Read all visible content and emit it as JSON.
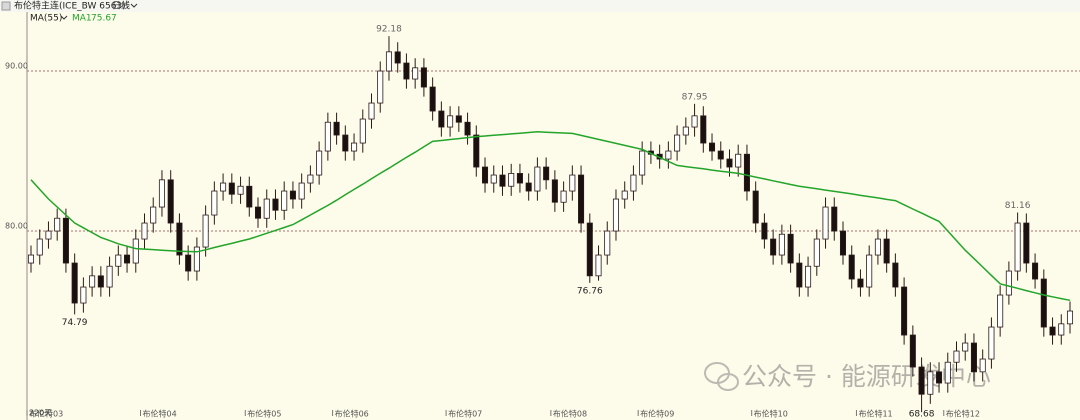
{
  "chart_data": {
    "type": "candlestick",
    "title": "布伦特主连(ICE_BW 6563)",
    "period": "日线",
    "indicator": "MA(55)",
    "days_label": "220天",
    "watermark": "公众号 · 能源研发中心",
    "up_color": "#ffffff",
    "down_color": "#1a1010",
    "outline_color": "#2a1a1a",
    "ylim": [
      68.19,
      94.44
    ],
    "yticks": [
      {
        "value": 90,
        "label": "90.00"
      },
      {
        "value": 80,
        "label": "80.00"
      }
    ],
    "grid": true,
    "categories": [
      "布伦特03",
      null,
      null,
      null,
      null,
      null,
      null,
      null,
      null,
      null,
      null,
      null,
      null,
      "布伦特04",
      null,
      null,
      null,
      null,
      null,
      null,
      null,
      null,
      null,
      null,
      null,
      "布伦特05",
      null,
      null,
      null,
      null,
      null,
      null,
      null,
      null,
      null,
      "布伦特06",
      null,
      null,
      null,
      null,
      null,
      null,
      null,
      null,
      null,
      null,
      null,
      null,
      "布伦特07",
      null,
      null,
      null,
      null,
      null,
      null,
      null,
      null,
      null,
      null,
      null,
      "布伦特08",
      null,
      null,
      null,
      null,
      null,
      null,
      null,
      null,
      null,
      "布伦特09",
      null,
      null,
      null,
      null,
      null,
      null,
      null,
      null,
      null,
      null,
      null,
      null,
      "布伦特10",
      null,
      null,
      null,
      null,
      null,
      null,
      null,
      null,
      null,
      null,
      null,
      "布伦特11",
      null,
      null,
      null,
      null,
      null,
      null,
      null,
      null,
      null,
      "布伦特12",
      null,
      null,
      null,
      null,
      null,
      null,
      null,
      null,
      null,
      null,
      null,
      null,
      null,
      null
    ],
    "open": [
      78,
      78.5,
      79.5,
      80,
      80.8,
      78,
      75.5,
      76.5,
      77.2,
      76.5,
      77.8,
      78.5,
      78,
      79.5,
      80.5,
      81.5,
      83.2,
      80.5,
      78.5,
      77.5,
      79,
      81,
      82.5,
      83,
      82.3,
      82.8,
      81.5,
      80.8,
      82,
      81.3,
      82.5,
      82,
      83,
      83.5,
      85,
      86.8,
      86,
      85,
      85.5,
      87,
      88,
      90,
      91.2,
      90.5,
      89.5,
      90.2,
      89,
      87.5,
      86.5,
      87.2,
      86.8,
      86,
      84,
      83,
      83.5,
      82.8,
      83.6,
      83,
      82.5,
      84,
      83.2,
      81.8,
      82.5,
      83.5,
      80.5,
      77.2,
      78.5,
      80,
      82,
      82.5,
      83.5,
      85,
      84.8,
      84.5,
      85,
      86,
      86.5,
      87.2,
      85.5,
      85,
      84.5,
      84,
      84.8,
      82.5,
      80.5,
      79.5,
      78.5,
      79.8,
      78,
      76.5,
      77.8,
      79.5,
      81.5,
      80,
      78.5,
      77,
      76.5,
      78.5,
      79.5,
      78,
      76.5,
      73.5,
      71.5,
      69.8,
      71.2,
      70.5,
      71.8,
      72.5,
      73,
      71.2,
      72,
      74,
      76,
      77.5,
      80.5,
      78,
      77,
      74,
      73.5,
      74.2
    ],
    "high": [
      79.1,
      80.1,
      80.6,
      81.4,
      81.4,
      78.6,
      77.1,
      77.8,
      77.8,
      78.4,
      79.1,
      79.1,
      80.1,
      81.1,
      82.1,
      83.8,
      83.8,
      81.1,
      79.1,
      79.6,
      81.6,
      83.1,
      83.6,
      83.6,
      83.4,
      83.4,
      82.1,
      82.6,
      82.6,
      83.1,
      83.1,
      83.6,
      84.1,
      85.6,
      87.4,
      87.4,
      86.6,
      86.1,
      87.6,
      88.6,
      90.6,
      92.18,
      91.8,
      91.1,
      90.8,
      90.8,
      89.6,
      88.1,
      87.8,
      87.8,
      87.4,
      86.6,
      84.6,
      84.1,
      84.1,
      84.2,
      84.2,
      83.6,
      84.6,
      84.6,
      83.8,
      83.1,
      84.1,
      84.1,
      81.1,
      79.1,
      80.6,
      82.6,
      83.1,
      84.1,
      85.6,
      85.6,
      85.4,
      85.6,
      86.6,
      87.1,
      87.95,
      87.8,
      86.1,
      85.6,
      85.1,
      85.4,
      85.4,
      83.1,
      81.1,
      80.1,
      80.4,
      80.4,
      78.6,
      78.4,
      80.1,
      82.1,
      82.1,
      80.6,
      79.1,
      77.6,
      79.1,
      80.1,
      80.1,
      78.6,
      77.1,
      74.1,
      72.1,
      71.8,
      71.8,
      72.4,
      73.1,
      73.6,
      73.6,
      72.6,
      74.6,
      76.6,
      78.1,
      81.16,
      81.1,
      78.6,
      77.6,
      74.6,
      74.8,
      75.6
    ],
    "low": [
      77.4,
      77.9,
      78.9,
      79.4,
      77.4,
      74.79,
      74.9,
      75.9,
      75.9,
      75.9,
      77.2,
      77.4,
      77.4,
      78.9,
      79.9,
      80.9,
      79.9,
      77.9,
      76.9,
      76.9,
      78.4,
      80.4,
      81.9,
      81.7,
      81.7,
      80.9,
      80.2,
      80.2,
      80.7,
      80.7,
      81.4,
      81.4,
      82.4,
      82.9,
      84.4,
      85.4,
      84.4,
      84.4,
      84.9,
      86.4,
      87.4,
      89.4,
      89.9,
      88.9,
      88.9,
      88.4,
      86.9,
      85.9,
      85.9,
      86.2,
      85.4,
      83.4,
      82.4,
      82.4,
      82.2,
      82.2,
      82.4,
      81.9,
      81.9,
      82.6,
      81.2,
      81.2,
      81.9,
      79.9,
      76.76,
      76.9,
      77.9,
      79.4,
      81.4,
      81.9,
      82.9,
      84.2,
      83.9,
      83.9,
      84.4,
      85.4,
      85.9,
      84.9,
      84.4,
      83.9,
      83.4,
      83.4,
      81.9,
      79.9,
      78.9,
      77.9,
      77.9,
      77.4,
      75.9,
      75.9,
      77.2,
      78.9,
      79.4,
      77.9,
      76.4,
      75.9,
      75.9,
      77.9,
      77.4,
      75.9,
      72.9,
      70.9,
      68.68,
      69.2,
      69.9,
      69.9,
      71.2,
      71.9,
      70.6,
      70.6,
      71.4,
      73.4,
      75.4,
      76.9,
      77.4,
      76.4,
      73.4,
      72.9,
      72.9,
      73.6
    ],
    "close": [
      78.5,
      79.5,
      80,
      80.8,
      78,
      75.5,
      76.5,
      77.2,
      76.5,
      77.8,
      78.5,
      78,
      79.5,
      80.5,
      81.5,
      83.2,
      80.5,
      78.5,
      77.5,
      79,
      81,
      82.5,
      83,
      82.3,
      82.8,
      81.5,
      80.8,
      82,
      81.3,
      82.5,
      82,
      83,
      83.5,
      85,
      86.8,
      86,
      85,
      85.5,
      87,
      88,
      90,
      91.2,
      90.5,
      89.5,
      90.2,
      89,
      87.5,
      86.5,
      87.2,
      86.8,
      86,
      84,
      83,
      83.5,
      82.8,
      83.6,
      83,
      82.5,
      84,
      83.2,
      81.8,
      82.5,
      83.5,
      80.5,
      77.2,
      78.5,
      80,
      82,
      82.5,
      83.5,
      85,
      84.8,
      84.5,
      85,
      86,
      86.5,
      87.2,
      85.5,
      85,
      84.5,
      84,
      84.8,
      82.5,
      80.5,
      79.5,
      78.5,
      79.8,
      78,
      76.5,
      77.8,
      79.5,
      81.5,
      80,
      78.5,
      77,
      76.5,
      78.5,
      79.5,
      78,
      76.5,
      73.5,
      71.5,
      69.8,
      71.2,
      70.5,
      71.8,
      72.5,
      73,
      71.2,
      72,
      74,
      76,
      77.5,
      80.5,
      78,
      77,
      74,
      73.5,
      74.2,
      75
    ],
    "ma": {
      "name": "MA1",
      "color": "#22a52a",
      "values": [
        83.2,
        82.6,
        82.0,
        81.5,
        81.0,
        80.5,
        80.2,
        79.9,
        79.6,
        79.4,
        79.2,
        79.05,
        78.9,
        78.87,
        78.84,
        78.8,
        78.77,
        78.74,
        78.72,
        78.7,
        78.83,
        78.97,
        79.1,
        79.23,
        79.37,
        79.5,
        79.68,
        79.86,
        80.04,
        80.22,
        80.4,
        80.7,
        81.0,
        81.3,
        81.6,
        81.93,
        82.27,
        82.6,
        82.93,
        83.27,
        83.6,
        83.93,
        84.27,
        84.6,
        84.93,
        85.27,
        85.6,
        85.66,
        85.72,
        85.78,
        85.84,
        85.9,
        85.94,
        85.99,
        86.03,
        86.07,
        86.11,
        86.16,
        86.2,
        86.18,
        86.15,
        86.13,
        86.1,
        85.98,
        85.85,
        85.73,
        85.6,
        85.48,
        85.35,
        85.23,
        85.1,
        84.85,
        84.6,
        84.35,
        84.1,
        84.03,
        83.96,
        83.89,
        83.81,
        83.74,
        83.67,
        83.6,
        83.49,
        83.37,
        83.26,
        83.14,
        83.03,
        82.91,
        82.8,
        82.72,
        82.64,
        82.56,
        82.48,
        82.4,
        82.32,
        82.23,
        82.15,
        82.07,
        81.98,
        81.9,
        81.64,
        81.38,
        81.12,
        80.86,
        80.6,
        80.0,
        79.4,
        78.8,
        78.28,
        77.75,
        77.23,
        76.7,
        76.56,
        76.42,
        76.28,
        76.14,
        76.0,
        75.89,
        75.78,
        75.67
      ]
    }
  }
}
